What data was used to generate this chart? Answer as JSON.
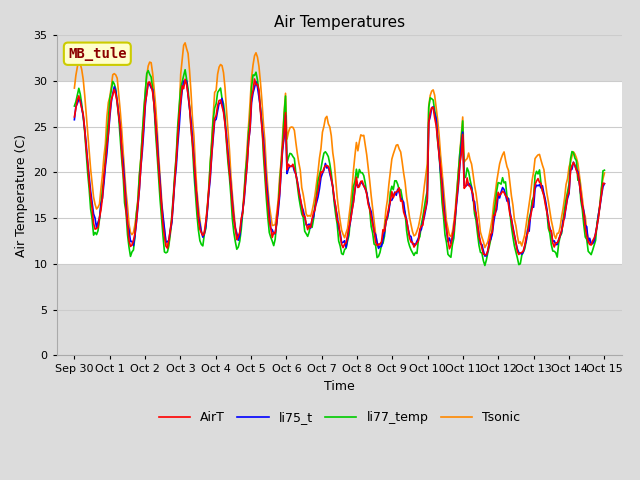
{
  "title": "Air Temperatures",
  "xlabel": "Time",
  "ylabel": "Air Temperature (C)",
  "ylim": [
    0,
    35
  ],
  "yticks": [
    0,
    5,
    10,
    15,
    20,
    25,
    30,
    35
  ],
  "xlim_start": -0.5,
  "xlim_end": 15.5,
  "xtick_labels": [
    "Sep 30",
    "Oct 1",
    "Oct 2",
    "Oct 3",
    "Oct 4",
    "Oct 5",
    "Oct 6",
    "Oct 7",
    "Oct 8",
    "Oct 9",
    "Oct 10",
    "Oct 11",
    "Oct 12",
    "Oct 13",
    "Oct 14",
    "Oct 15"
  ],
  "annotation_text": "MB_tule",
  "annotation_color": "#8B0000",
  "annotation_bg": "#FFFFCC",
  "annotation_border": "#CCCC00",
  "line_colors": {
    "AirT": "#FF0000",
    "li75_t": "#0000FF",
    "li77_temp": "#00CC00",
    "Tsonic": "#FF8800"
  },
  "line_widths": {
    "AirT": 1.2,
    "li75_t": 1.2,
    "li77_temp": 1.2,
    "Tsonic": 1.2
  },
  "fig_bg": "#DCDCDC",
  "plot_bg": "#FFFFFF",
  "band_colors": [
    "#E8E8E8",
    "#FFFFFF"
  ],
  "grid_color": "#D0D0D0",
  "title_fontsize": 11,
  "axis_fontsize": 9,
  "tick_fontsize": 8,
  "legend_fontsize": 9,
  "mins_base": [
    14,
    12,
    12,
    13,
    13,
    13,
    14,
    12,
    12,
    12,
    12,
    11,
    11,
    12,
    12,
    13
  ],
  "maxs_base": [
    28,
    29,
    30,
    30,
    28,
    30,
    21,
    21,
    19,
    18,
    27,
    19,
    18,
    19,
    21,
    20
  ],
  "mins_sonic": [
    16,
    13,
    12,
    13,
    13,
    14,
    15,
    13,
    12,
    13,
    13,
    12,
    12,
    13,
    12,
    14
  ],
  "maxs_sonic": [
    32,
    31,
    32,
    34,
    32,
    33,
    25,
    26,
    24,
    23,
    29,
    22,
    22,
    22,
    22,
    21
  ],
  "mins_li77": [
    13,
    11,
    11,
    12,
    12,
    12,
    13,
    11,
    11,
    11,
    11,
    10,
    10,
    11,
    11,
    12
  ],
  "maxs_li77": [
    29,
    30,
    31,
    31,
    29,
    31,
    22,
    22,
    20,
    19,
    28,
    20,
    19,
    20,
    22,
    21
  ],
  "phase_base": 0.625,
  "phase_sonic": 0.635,
  "phase_li77": 0.61,
  "noise_seed": 42,
  "noise_scale": 0.25
}
